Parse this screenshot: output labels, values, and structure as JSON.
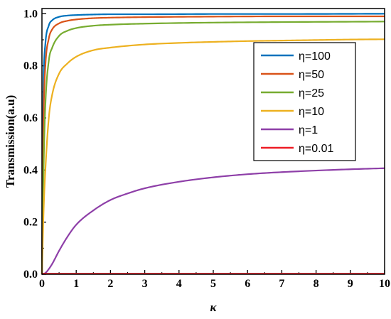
{
  "chart_data": {
    "type": "line",
    "xlabel": "κ",
    "ylabel": "Transmission(a.u)",
    "xlim": [
      0,
      10
    ],
    "ylim": [
      0,
      1.02
    ],
    "xticks": [
      "0",
      "1",
      "2",
      "3",
      "4",
      "5",
      "6",
      "7",
      "8",
      "9",
      "10"
    ],
    "yticks": [
      "0.0",
      "0.2",
      "0.4",
      "0.6",
      "0.8",
      "1.0"
    ],
    "grid": false,
    "legend_position": "right",
    "series": [
      {
        "name": "η=100",
        "color": "#0072bd",
        "x": [
          0,
          0.02,
          0.05,
          0.1,
          0.2,
          0.3,
          0.5,
          0.75,
          1,
          1.5,
          2,
          3,
          5,
          7,
          10
        ],
        "y": [
          0,
          0.45,
          0.75,
          0.885,
          0.955,
          0.975,
          0.988,
          0.993,
          0.995,
          0.997,
          0.998,
          0.998,
          0.999,
          0.999,
          1.0
        ]
      },
      {
        "name": "η=50",
        "color": "#d95319",
        "x": [
          0,
          0.02,
          0.05,
          0.1,
          0.2,
          0.3,
          0.5,
          0.75,
          1,
          1.5,
          2,
          3,
          5,
          7,
          10
        ],
        "y": [
          0,
          0.3,
          0.62,
          0.8,
          0.905,
          0.94,
          0.963,
          0.973,
          0.978,
          0.983,
          0.985,
          0.987,
          0.989,
          0.99,
          0.99
        ]
      },
      {
        "name": "η=25",
        "color": "#77ac30",
        "x": [
          0,
          0.03,
          0.05,
          0.1,
          0.2,
          0.3,
          0.5,
          0.75,
          1,
          1.5,
          2,
          3,
          5,
          7,
          10
        ],
        "y": [
          0,
          0.25,
          0.42,
          0.65,
          0.82,
          0.87,
          0.915,
          0.935,
          0.945,
          0.954,
          0.958,
          0.962,
          0.966,
          0.968,
          0.97
        ]
      },
      {
        "name": "η=10",
        "color": "#edb120",
        "x": [
          0,
          0.05,
          0.1,
          0.2,
          0.3,
          0.5,
          0.75,
          1,
          1.5,
          2,
          3,
          4,
          5,
          6,
          7,
          8,
          9,
          10
        ],
        "y": [
          0,
          0.25,
          0.4,
          0.6,
          0.69,
          0.77,
          0.81,
          0.835,
          0.86,
          0.87,
          0.882,
          0.888,
          0.892,
          0.895,
          0.897,
          0.899,
          0.901,
          0.902
        ]
      },
      {
        "name": "η=1",
        "color": "#8e3fa8",
        "x": [
          0,
          0.1,
          0.2,
          0.3,
          0.5,
          0.75,
          1,
          1.5,
          2,
          2.5,
          3,
          4,
          5,
          6,
          7,
          8,
          9,
          10
        ],
        "y": [
          0,
          0.005,
          0.02,
          0.04,
          0.09,
          0.145,
          0.19,
          0.245,
          0.285,
          0.31,
          0.33,
          0.355,
          0.372,
          0.384,
          0.392,
          0.398,
          0.403,
          0.407
        ]
      },
      {
        "name": "η=0.01",
        "color": "#ee1c25",
        "x": [
          0,
          10
        ],
        "y": [
          0.002,
          0.002
        ]
      }
    ]
  }
}
